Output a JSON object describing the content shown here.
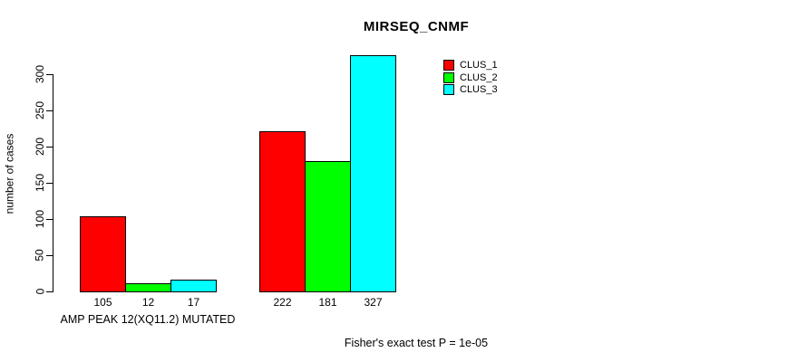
{
  "title": "MIRSEQ_CNMF",
  "ylabel": "number of cases",
  "group_label": "AMP PEAK 12(XQ11.2) MUTATED",
  "footnote": "Fisher's exact test P = 1e-05",
  "chart_data": {
    "type": "bar",
    "title": "MIRSEQ_CNMF",
    "ylabel": "number of cases",
    "xlabel": "AMP PEAK 12(XQ11.2) MUTATED",
    "annotation": "Fisher's exact test P = 1e-05",
    "categories": [
      "AMP PEAK 12(XQ11.2) MUTATED",
      ""
    ],
    "series": [
      {
        "name": "CLUS_1",
        "color": "#FF0000",
        "values": [
          105,
          222
        ]
      },
      {
        "name": "CLUS_2",
        "color": "#00FF00",
        "values": [
          12,
          181
        ]
      },
      {
        "name": "CLUS_3",
        "color": "#00FFFF",
        "values": [
          17,
          327
        ]
      }
    ],
    "bar_value_labels": [
      [
        105,
        12,
        17
      ],
      [
        222,
        181,
        327
      ]
    ],
    "yticks": [
      0,
      50,
      100,
      150,
      200,
      250,
      300
    ],
    "ylim": [
      0,
      340
    ],
    "grid": false,
    "legend_position": "top-right-inside",
    "bar_border_color": "#000000"
  }
}
